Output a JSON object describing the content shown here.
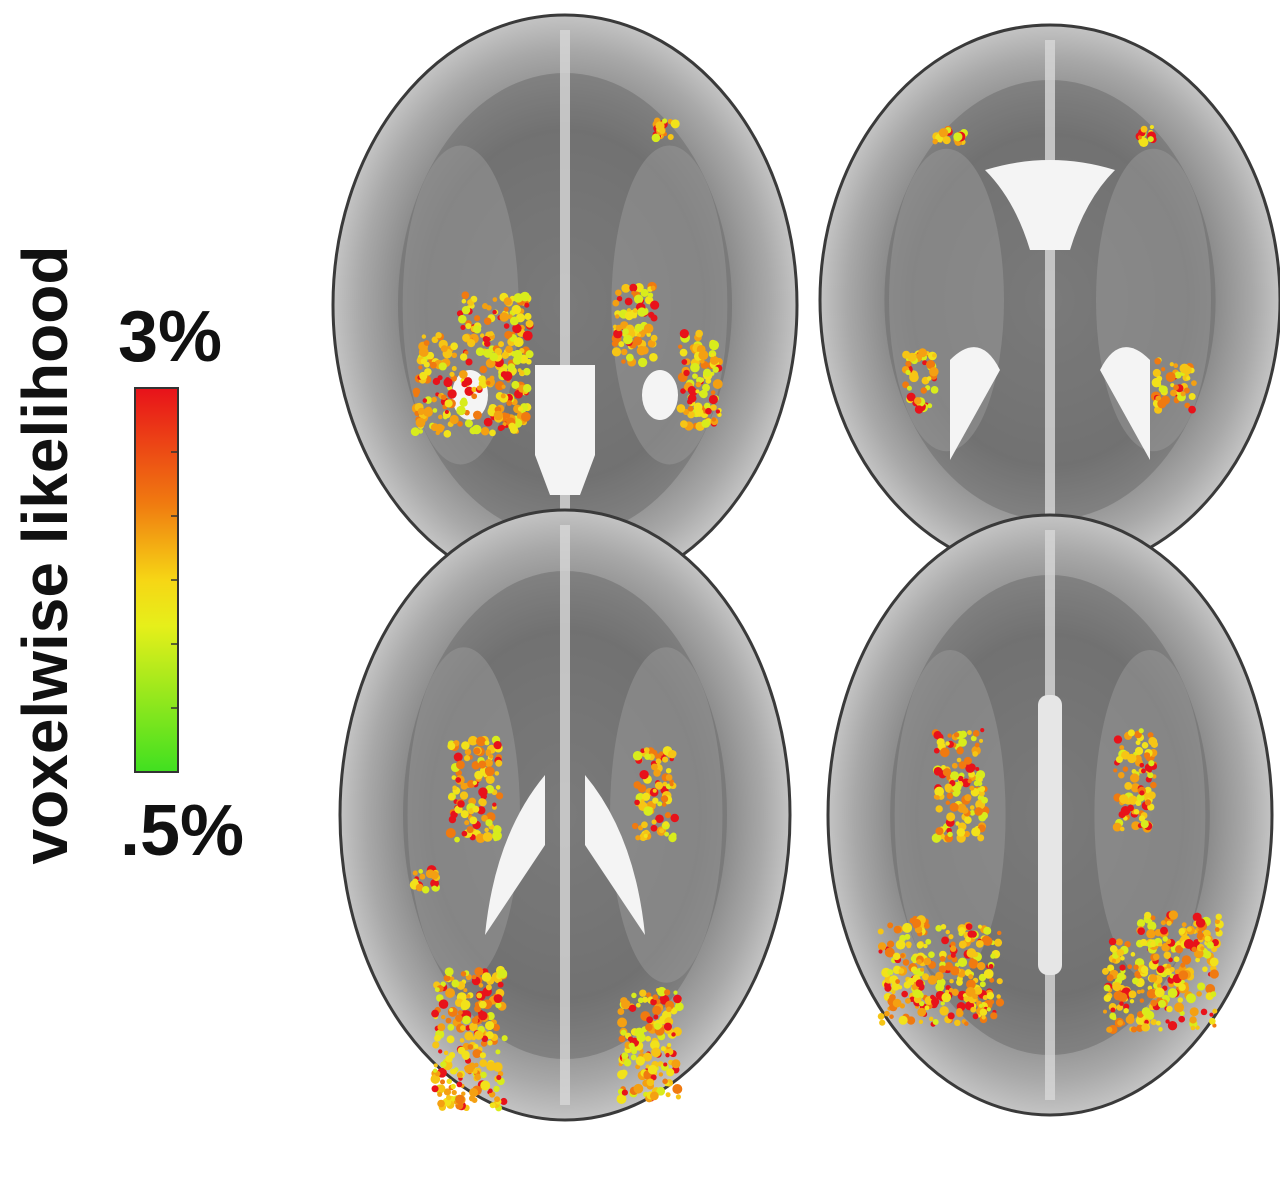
{
  "colorbar": {
    "label": "voxelwise likelihood",
    "max_label": "3%",
    "min_label": ".5%"
  }
}
